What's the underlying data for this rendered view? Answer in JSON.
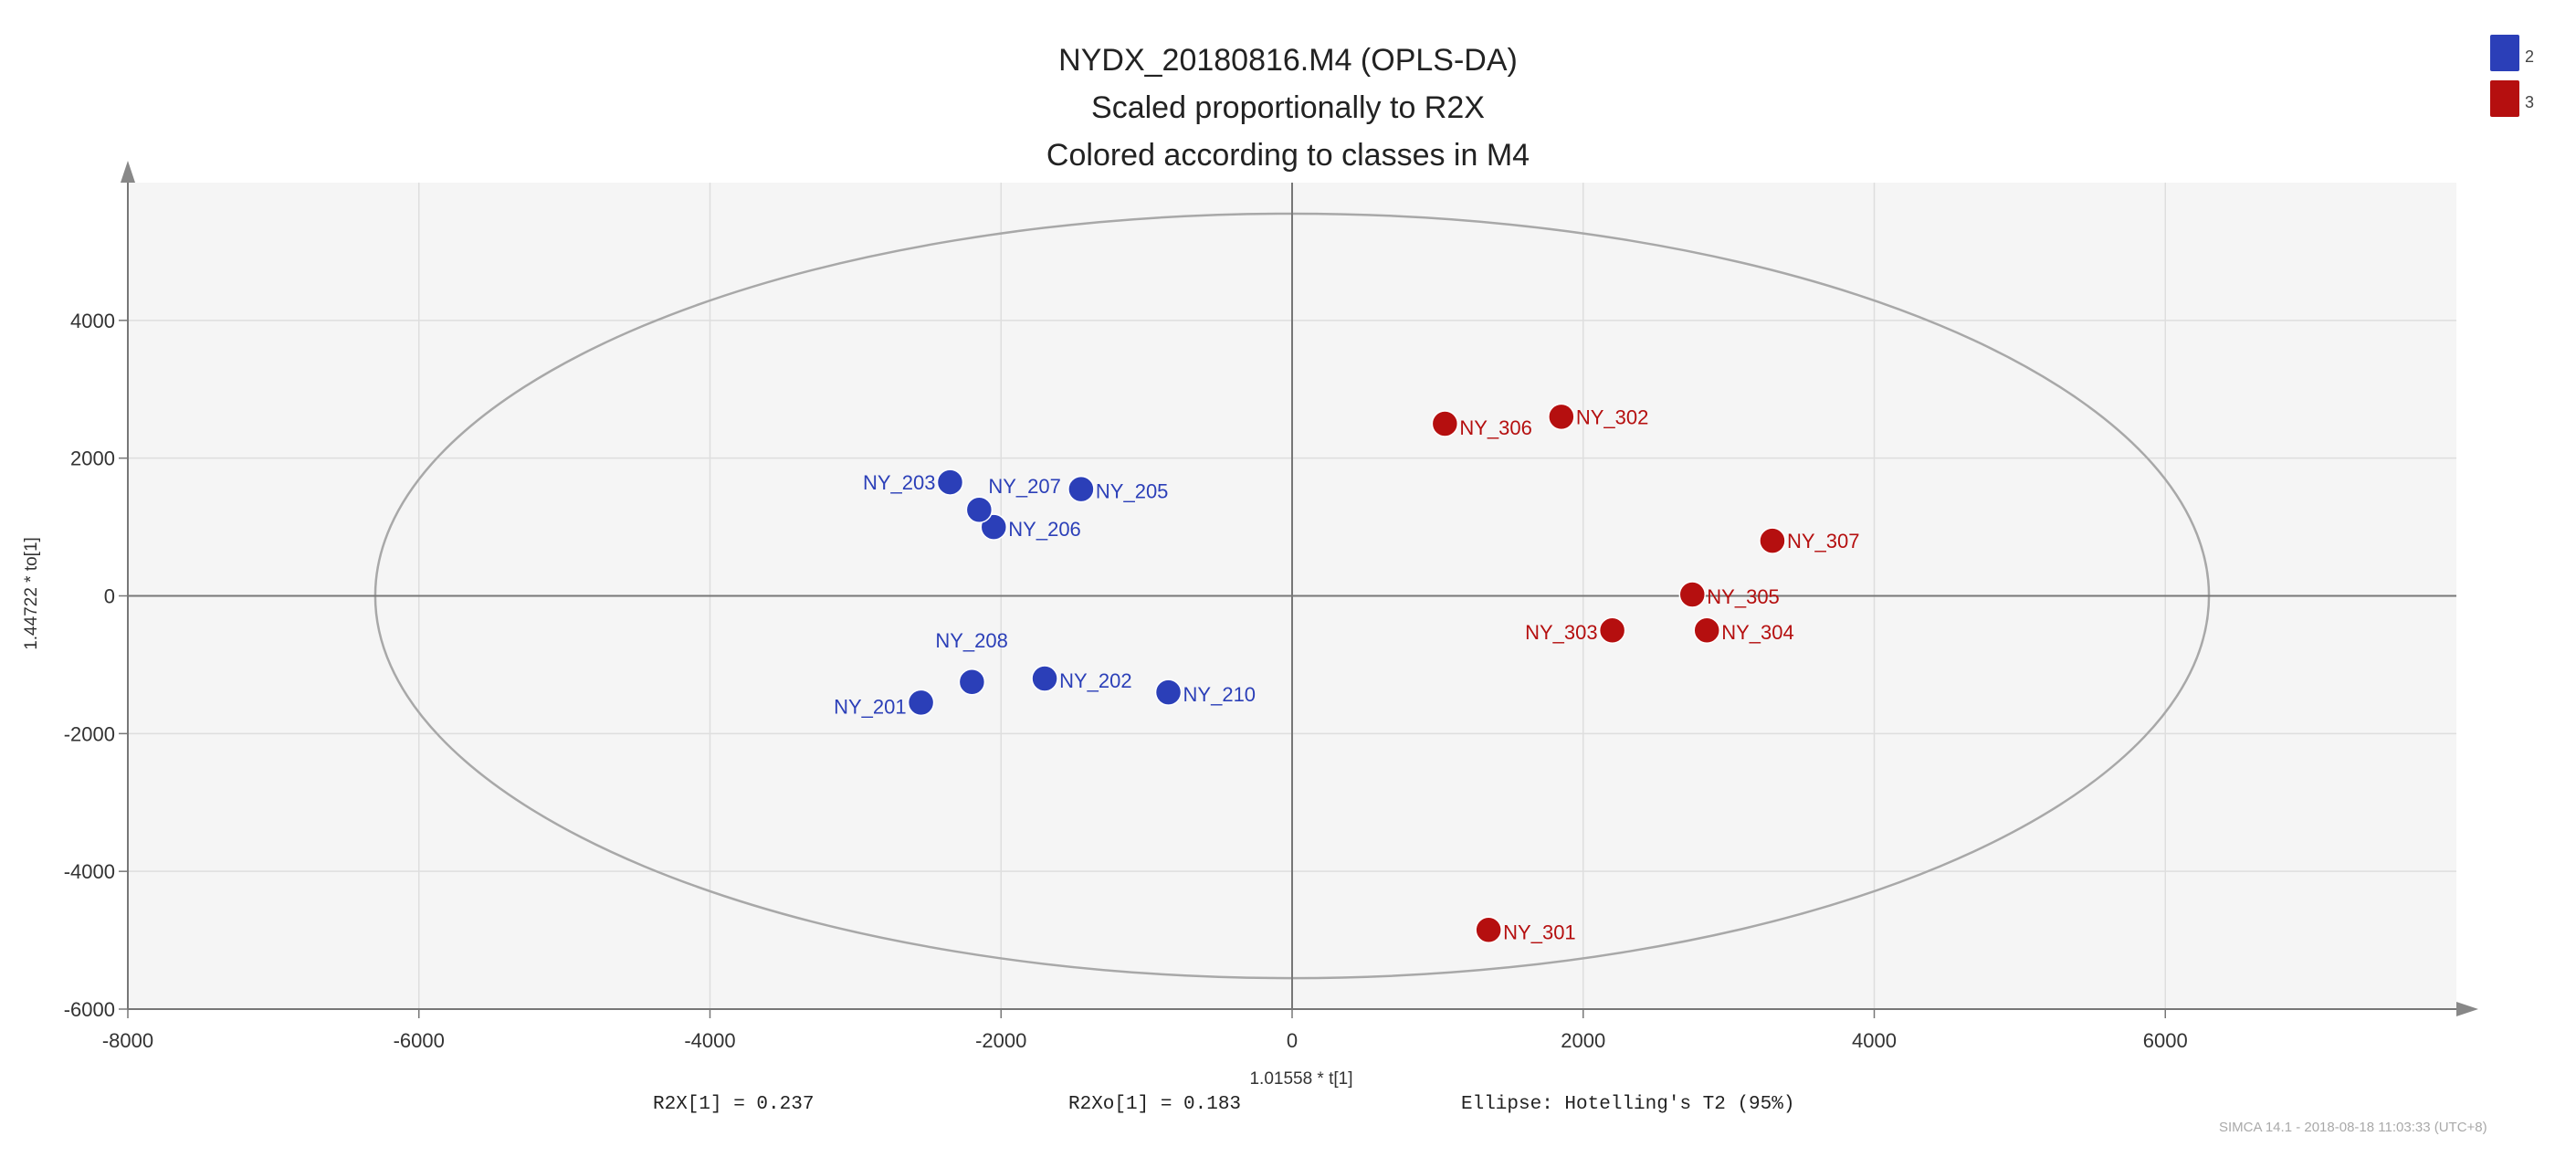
{
  "chart_data": {
    "type": "scatter",
    "title": "NYDX_20180816.M4 (OPLS-DA)",
    "subtitle": [
      "Scaled proportionally to R2X",
      "Colored according to classes in M4"
    ],
    "xlabel": "1.01558 * t[1]",
    "ylabel": "1.44722 * to[1]",
    "xlim": [
      -8000,
      8000
    ],
    "ylim": [
      -6000,
      6000
    ],
    "xticks": [
      -8000,
      -6000,
      -4000,
      -2000,
      0,
      2000,
      4000,
      6000
    ],
    "yticks": [
      -6000,
      -4000,
      -2000,
      0,
      2000,
      4000
    ],
    "grid": true,
    "legend_position": "top-right",
    "ellipse": {
      "label": "Ellipse: Hotelling's T2 (95%)",
      "x_range": [
        -6300,
        6300
      ],
      "y_range": [
        -5550,
        5550
      ]
    },
    "series": [
      {
        "name": "2",
        "color": "#2b3fb8",
        "points": [
          {
            "label": "NY_201",
            "x": -2550,
            "y": -1550
          },
          {
            "label": "NY_202",
            "x": -1700,
            "y": -1200
          },
          {
            "label": "NY_203",
            "x": -2350,
            "y": 1650
          },
          {
            "label": "NY_205",
            "x": -1450,
            "y": 1550
          },
          {
            "label": "NY_206",
            "x": -2050,
            "y": 1000
          },
          {
            "label": "NY_207",
            "x": -2150,
            "y": 1250
          },
          {
            "label": "NY_208",
            "x": -2200,
            "y": -1250
          },
          {
            "label": "NY_210",
            "x": -850,
            "y": -1400
          }
        ]
      },
      {
        "name": "3",
        "color": "#b50f0f",
        "points": [
          {
            "label": "NY_301",
            "x": 1350,
            "y": -4850
          },
          {
            "label": "NY_302",
            "x": 1850,
            "y": 2600
          },
          {
            "label": "NY_303",
            "x": 2200,
            "y": -500
          },
          {
            "label": "NY_304",
            "x": 2850,
            "y": -500
          },
          {
            "label": "NY_305",
            "x": 2750,
            "y": 20
          },
          {
            "label": "NY_306",
            "x": 1050,
            "y": 2500
          },
          {
            "label": "NY_307",
            "x": 3300,
            "y": 800
          }
        ]
      }
    ]
  },
  "stats": {
    "r2x": "R2X[1] = 0.237",
    "r2xo": "R2Xo[1] = 0.183",
    "ellipse": "Ellipse: Hotelling's T2 (95%)"
  },
  "footer": "SIMCA 14.1 - 2018-08-18 11:03:33 (UTC+8)"
}
